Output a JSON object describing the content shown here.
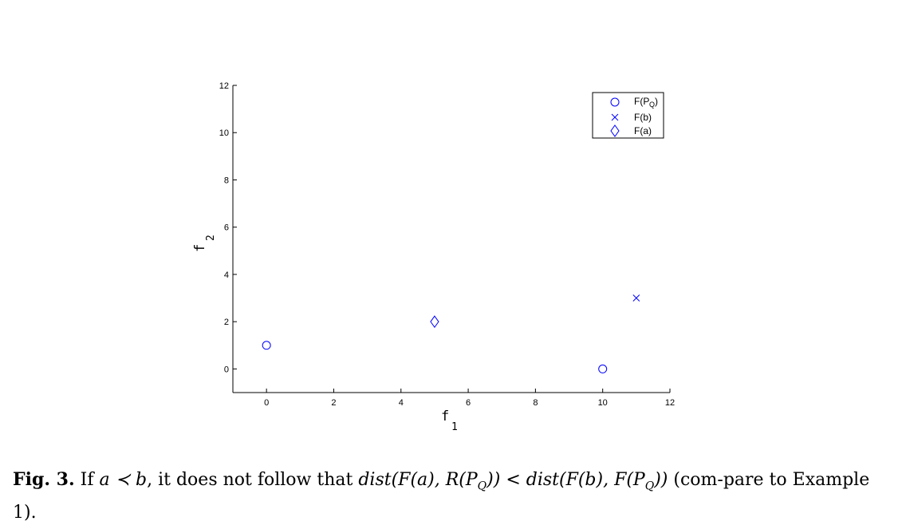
{
  "chart_data": {
    "type": "scatter",
    "xlabel": "f",
    "xlabel_sub": "1",
    "ylabel": "f",
    "ylabel_sub": "2",
    "xlim": [
      -1,
      12
    ],
    "ylim": [
      -1,
      12
    ],
    "xticks": [
      0,
      2,
      4,
      6,
      8,
      10,
      12
    ],
    "yticks": [
      0,
      2,
      4,
      6,
      8,
      10,
      12
    ],
    "grid": false,
    "legend_position": "top-right",
    "color": "#0000ff",
    "series": [
      {
        "name": "F(P",
        "name_sub": "Q",
        "name_suffix": ")",
        "marker": "circle",
        "points": [
          [
            0,
            1
          ],
          [
            10,
            0
          ]
        ]
      },
      {
        "name": "F(b)",
        "marker": "x",
        "points": [
          [
            11,
            3
          ]
        ]
      },
      {
        "name": "F(a)",
        "marker": "diamond",
        "points": [
          [
            5,
            2
          ]
        ]
      }
    ]
  },
  "caption": {
    "label": "Fig. 3.",
    "text_1": " If ",
    "math_1": "a ≺ b",
    "text_2": ", it does not follow that ",
    "math_2": "dist(F(a), R(P",
    "math_2_sub": "Q",
    "math_2_end": ")) < dist(F(b), F(P",
    "math_3_sub": "Q",
    "math_3_end": "))",
    "text_3": " (com-pare to Example 1)."
  }
}
